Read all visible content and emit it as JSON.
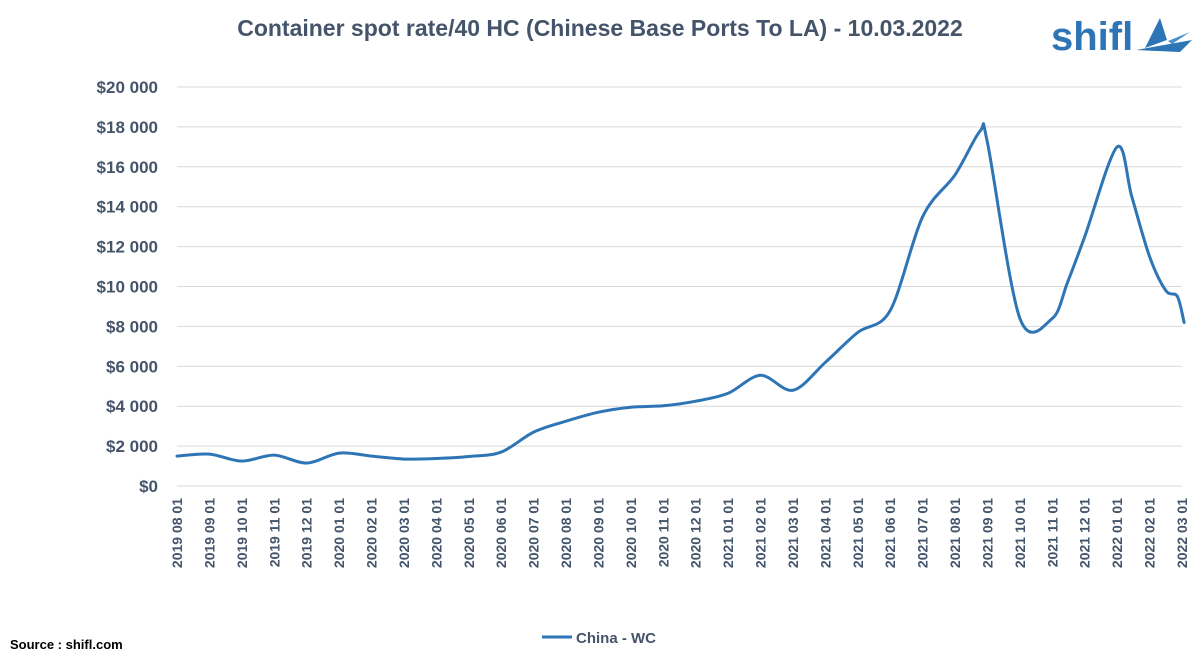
{
  "colors": {
    "series": "#2e75b6",
    "text": "#44546a",
    "grid": "#d9d9d9",
    "brand": "#2e75b6"
  },
  "brand": {
    "name": "shifl",
    "icon": "boat-sail-icon"
  },
  "source": "Source : shifl.com",
  "chart_data": {
    "type": "line",
    "title": "Container spot rate/40 HC (Chinese Base Ports To LA) - 10.03.2022",
    "xlabel": "",
    "ylabel": "",
    "ylim": [
      0,
      20000
    ],
    "grid": true,
    "legend_position": "bottom",
    "y_ticks": [
      {
        "value": 0,
        "label": "$0"
      },
      {
        "value": 2000,
        "label": "$2 000"
      },
      {
        "value": 4000,
        "label": "$4 000"
      },
      {
        "value": 6000,
        "label": "$6 000"
      },
      {
        "value": 8000,
        "label": "$8 000"
      },
      {
        "value": 10000,
        "label": "$10 000"
      },
      {
        "value": 12000,
        "label": "$12 000"
      },
      {
        "value": 14000,
        "label": "$14 000"
      },
      {
        "value": 16000,
        "label": "$16 000"
      },
      {
        "value": 18000,
        "label": "$18 000"
      },
      {
        "value": 20000,
        "label": "$20 000"
      }
    ],
    "categories": [
      "2019 08 01",
      "2019 09 01",
      "2019 10 01",
      "2019 11 01",
      "2019 12 01",
      "2020 01 01",
      "2020 02 01",
      "2020 03 01",
      "2020 04 01",
      "2020 05 01",
      "2020 06 01",
      "2020 07 01",
      "2020 08 01",
      "2020 09 01",
      "2020 10 01",
      "2020 11 01",
      "2020 12 01",
      "2021 01 01",
      "2021 02 01",
      "2021 03 01",
      "2021 04 01",
      "2021 05 01",
      "2021 06 01",
      "2021 07 01",
      "2021 08 01",
      "2021 09 01",
      "2021 10 01",
      "2021 11 01",
      "2021 12 01",
      "2022 01 01",
      "2022 02 01",
      "2022 03 01"
    ],
    "series": [
      {
        "name": "China - WC",
        "points": [
          {
            "x": "2019 08 01",
            "y": 1500
          },
          {
            "x": "2019 09 01",
            "y": 1600
          },
          {
            "x": "2019 10 01",
            "y": 1250
          },
          {
            "x": "2019 11 01",
            "y": 1550
          },
          {
            "x": "2019 12 01",
            "y": 1150
          },
          {
            "x": "2020 01 01",
            "y": 1650
          },
          {
            "x": "2020 02 01",
            "y": 1500
          },
          {
            "x": "2020 03 01",
            "y": 1350
          },
          {
            "x": "2020 04 01",
            "y": 1380
          },
          {
            "x": "2020 05 01",
            "y": 1480
          },
          {
            "x": "2020 06 01",
            "y": 1700
          },
          {
            "x": "2020 07 01",
            "y": 2700
          },
          {
            "x": "2020 08 01",
            "y": 3250
          },
          {
            "x": "2020 09 01",
            "y": 3700
          },
          {
            "x": "2020 10 01",
            "y": 3950
          },
          {
            "x": "2020 11 01",
            "y": 4020
          },
          {
            "x": "2020 12 01",
            "y": 4250
          },
          {
            "x": "2021 01 01",
            "y": 4650
          },
          {
            "x": "2021 02 01",
            "y": 5550
          },
          {
            "x": "2021 03 01",
            "y": 4800
          },
          {
            "x": "2021 04 01",
            "y": 6200
          },
          {
            "x": "2021 05 01",
            "y": 7700
          },
          {
            "x": "2021 06 01",
            "y": 8800
          },
          {
            "x": "2021 07 01",
            "y": 13500
          },
          {
            "x": "2021 08 01",
            "y": 15600
          },
          {
            "x": "2021 08 25",
            "y": 17800
          },
          {
            "x": "2021 09 01",
            "y": 17200
          },
          {
            "x": "2021 10 01",
            "y": 8400
          },
          {
            "x": "2021 11 01",
            "y": 8400
          },
          {
            "x": "2021 11 15",
            "y": 10200
          },
          {
            "x": "2021 12 01",
            "y": 12500
          },
          {
            "x": "2022 01 01",
            "y": 17000
          },
          {
            "x": "2022 01 15",
            "y": 14500
          },
          {
            "x": "2022 02 01",
            "y": 11500
          },
          {
            "x": "2022 02 15",
            "y": 9800
          },
          {
            "x": "2022 02 25",
            "y": 9500
          },
          {
            "x": "2022 03 03",
            "y": 8200
          }
        ]
      }
    ]
  }
}
